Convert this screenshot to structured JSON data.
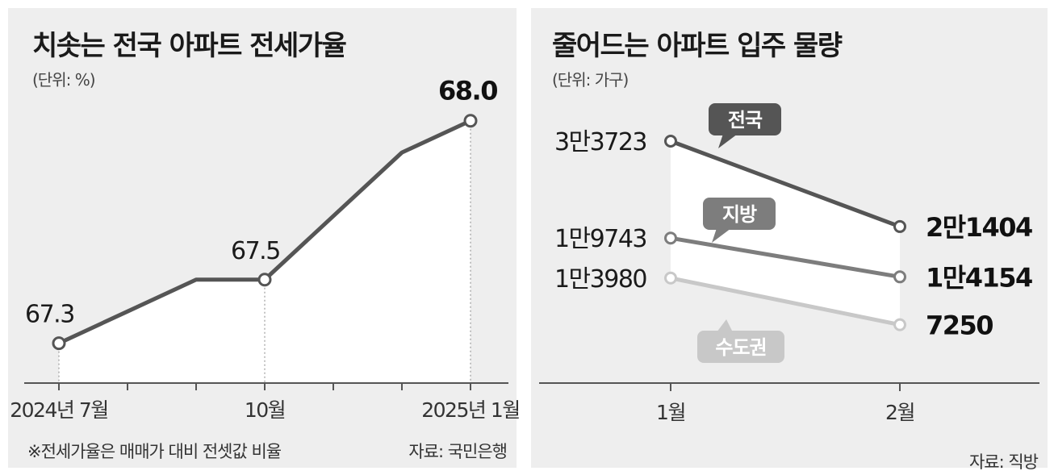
{
  "left_chart": {
    "title": "치솟는 전국 아파트 전세가율",
    "unit": "(단위: %)",
    "note": "※전세가율은 매매가 대비 전셋값 비율",
    "source": "자료: 국민은행",
    "colors": {
      "line": "#555555",
      "area": "#ffffff",
      "axis": "#555555"
    }
  },
  "right_chart": {
    "title": "줄어드는 아파트 입주 물량",
    "unit": "(단위: 가구)",
    "source": "자료: 직방",
    "colors": {
      "nationwide": "#555555",
      "local": "#7d7d7d",
      "capital": "#c8c8c8",
      "area": "#ffffff"
    }
  },
  "chart_data": [
    {
      "type": "line",
      "title": "치솟는 전국 아파트 전세가율",
      "ylabel": "(단위: %)",
      "x": [
        "2024-07",
        "2024-08",
        "2024-09",
        "2024-10",
        "2024-11",
        "2024-12",
        "2025-01"
      ],
      "x_tick_labels": [
        "2024년 7월",
        "10월",
        "2025년 1월"
      ],
      "series": [
        {
          "values": [
            67.3,
            67.4,
            67.5,
            67.5,
            67.7,
            67.9,
            68.0
          ]
        }
      ],
      "data_labels": [
        {
          "x_index": 0,
          "text": "67.3",
          "bold": false
        },
        {
          "x_index": 3,
          "text": "67.5",
          "bold": false
        },
        {
          "x_index": 6,
          "text": "68.0",
          "bold": true
        }
      ],
      "ylim": [
        67.2,
        68.05
      ],
      "grid": false
    },
    {
      "type": "line",
      "title": "줄어드는 아파트 입주 물량",
      "ylabel": "(단위: 가구)",
      "categories": [
        "1월",
        "2월"
      ],
      "series": [
        {
          "name": "전국",
          "values": [
            33723,
            21404
          ],
          "labels": [
            "3만3723",
            "2만1404"
          ]
        },
        {
          "name": "지방",
          "values": [
            19743,
            14154
          ],
          "labels": [
            "1만9743",
            "1만4154"
          ]
        },
        {
          "name": "수도권",
          "values": [
            13980,
            7250
          ],
          "labels": [
            "1만3980",
            "7250"
          ]
        }
      ],
      "ylim": [
        0,
        40000
      ],
      "grid": false
    }
  ]
}
